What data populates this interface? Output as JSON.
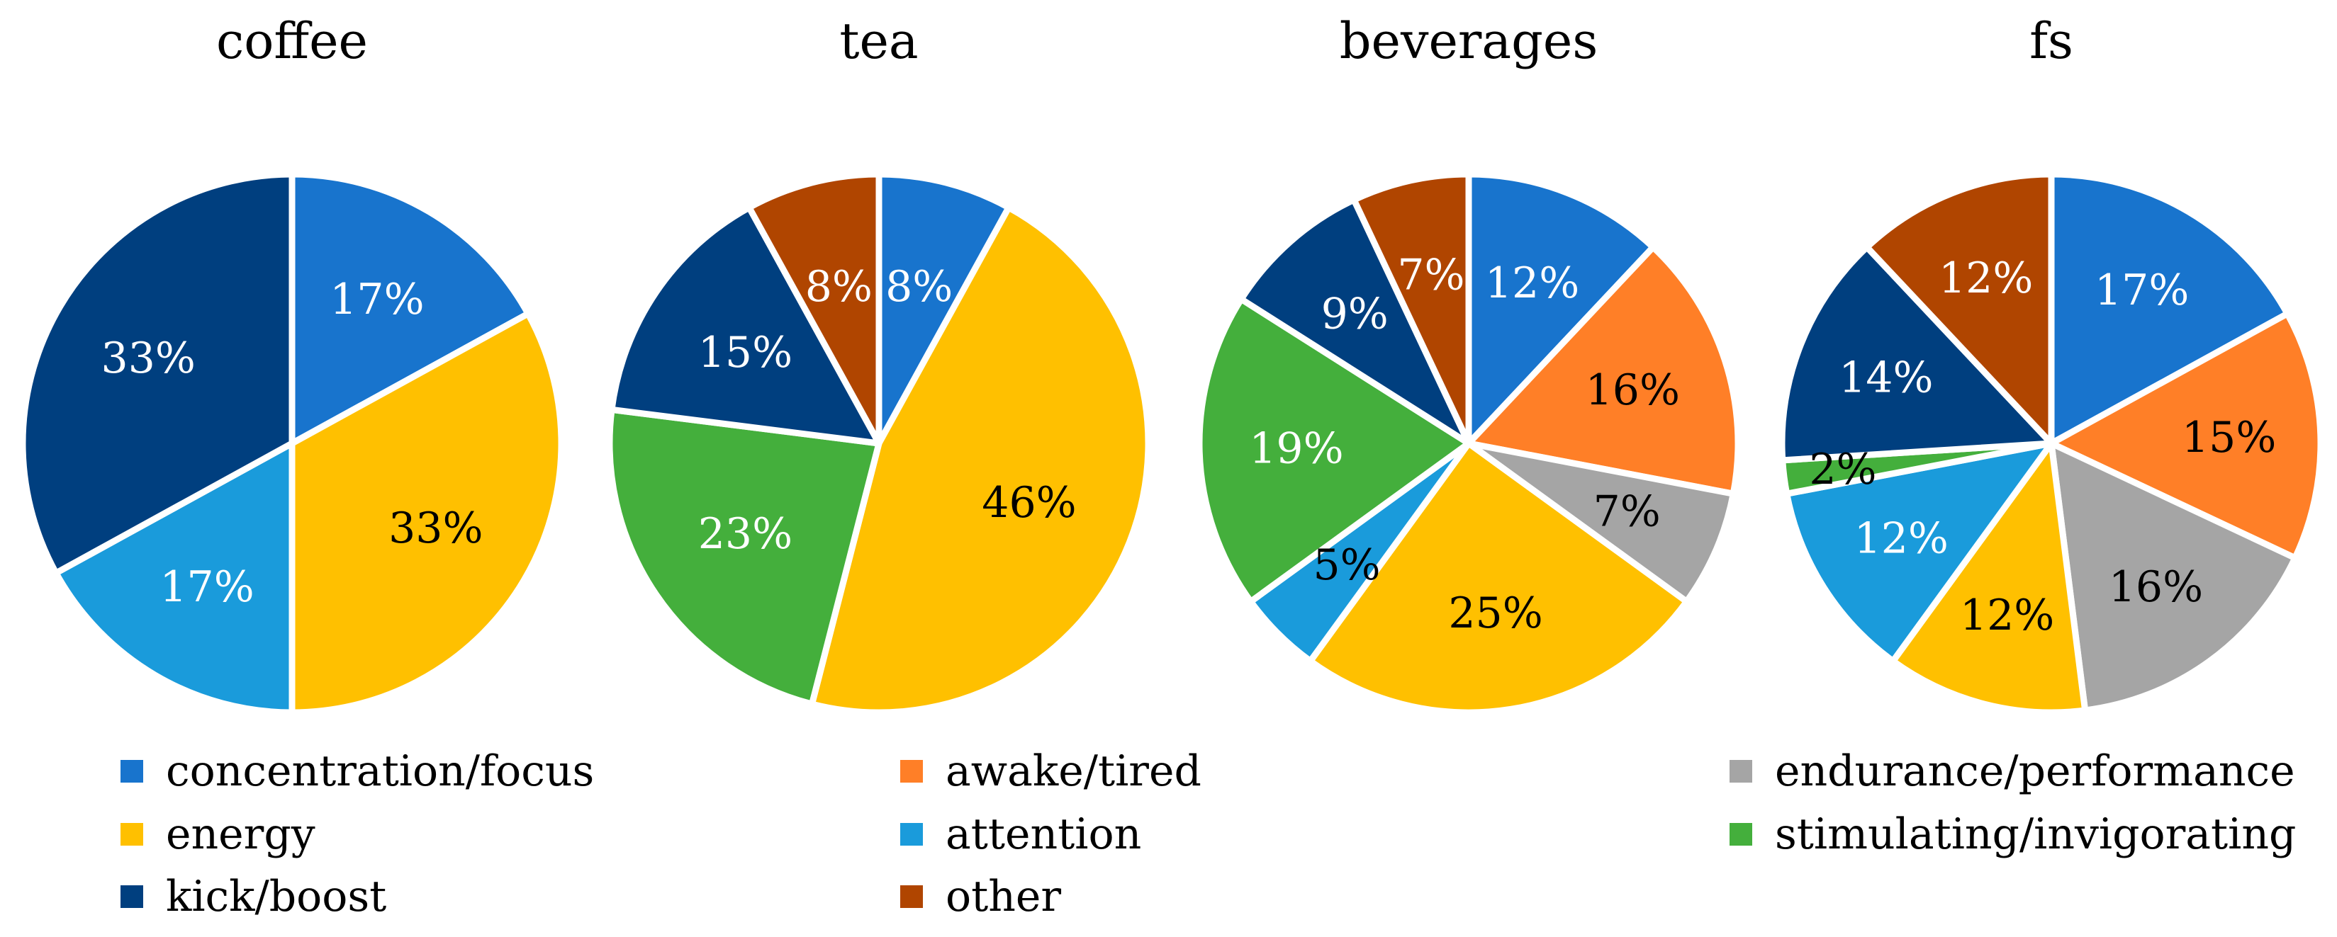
{
  "chart_data": {
    "type": "pie",
    "categories": [
      {
        "key": "concentration",
        "label": "concentration/focus",
        "color": "#1874CD"
      },
      {
        "key": "awake",
        "label": "awake/tired",
        "color": "#FF7F27"
      },
      {
        "key": "endurance",
        "label": "endurance/performance",
        "color": "#A5A5A5"
      },
      {
        "key": "energy",
        "label": "energy",
        "color": "#FFC000"
      },
      {
        "key": "attention",
        "label": "attention",
        "color": "#1A9BDB"
      },
      {
        "key": "stimulating",
        "label": "stimulating/invigorating",
        "color": "#44AF3C"
      },
      {
        "key": "kick",
        "label": "kick/boost",
        "color": "#003F7F"
      },
      {
        "key": "other",
        "label": "other",
        "color": "#B04500"
      }
    ],
    "charts": [
      {
        "title": "coffee",
        "slices": [
          {
            "key": "concentration",
            "value": 17,
            "label": "17%",
            "text_color": "#ffffff"
          },
          {
            "key": "energy",
            "value": 33,
            "label": "33%",
            "text_color": "#000000"
          },
          {
            "key": "attention",
            "value": 17,
            "label": "17%",
            "text_color": "#ffffff"
          },
          {
            "key": "kick",
            "value": 33,
            "label": "33%",
            "text_color": "#ffffff"
          }
        ]
      },
      {
        "title": "tea",
        "slices": [
          {
            "key": "concentration",
            "value": 8,
            "label": "8%",
            "text_color": "#ffffff"
          },
          {
            "key": "energy",
            "value": 46,
            "label": "46%",
            "text_color": "#000000"
          },
          {
            "key": "stimulating",
            "value": 23,
            "label": "23%",
            "text_color": "#ffffff"
          },
          {
            "key": "kick",
            "value": 15,
            "label": "15%",
            "text_color": "#ffffff"
          },
          {
            "key": "other",
            "value": 8,
            "label": "8%",
            "text_color": "#ffffff"
          }
        ]
      },
      {
        "title": "beverages",
        "slices": [
          {
            "key": "concentration",
            "value": 12,
            "label": "12%",
            "text_color": "#ffffff"
          },
          {
            "key": "awake",
            "value": 16,
            "label": "16%",
            "text_color": "#000000"
          },
          {
            "key": "endurance",
            "value": 7,
            "label": "7%",
            "text_color": "#000000"
          },
          {
            "key": "energy",
            "value": 25,
            "label": "25%",
            "text_color": "#000000"
          },
          {
            "key": "attention",
            "value": 5,
            "label": "5%",
            "text_color": "#000000"
          },
          {
            "key": "stimulating",
            "value": 19,
            "label": "19%",
            "text_color": "#ffffff"
          },
          {
            "key": "kick",
            "value": 9,
            "label": "9%",
            "text_color": "#ffffff"
          },
          {
            "key": "other",
            "value": 7,
            "label": "7%",
            "text_color": "#ffffff"
          }
        ]
      },
      {
        "title": "fs",
        "slices": [
          {
            "key": "concentration",
            "value": 17,
            "label": "17%",
            "text_color": "#ffffff"
          },
          {
            "key": "awake",
            "value": 15,
            "label": "15%",
            "text_color": "#000000"
          },
          {
            "key": "endurance",
            "value": 16,
            "label": "16%",
            "text_color": "#000000"
          },
          {
            "key": "energy",
            "value": 12,
            "label": "12%",
            "text_color": "#000000"
          },
          {
            "key": "attention",
            "value": 12,
            "label": "12%",
            "text_color": "#ffffff"
          },
          {
            "key": "stimulating",
            "value": 2,
            "label": "2%",
            "text_color": "#000000"
          },
          {
            "key": "kick",
            "value": 14,
            "label": "14%",
            "text_color": "#ffffff"
          },
          {
            "key": "other",
            "value": 12,
            "label": "12%",
            "text_color": "#ffffff"
          }
        ]
      }
    ],
    "legend_position": "bottom"
  }
}
